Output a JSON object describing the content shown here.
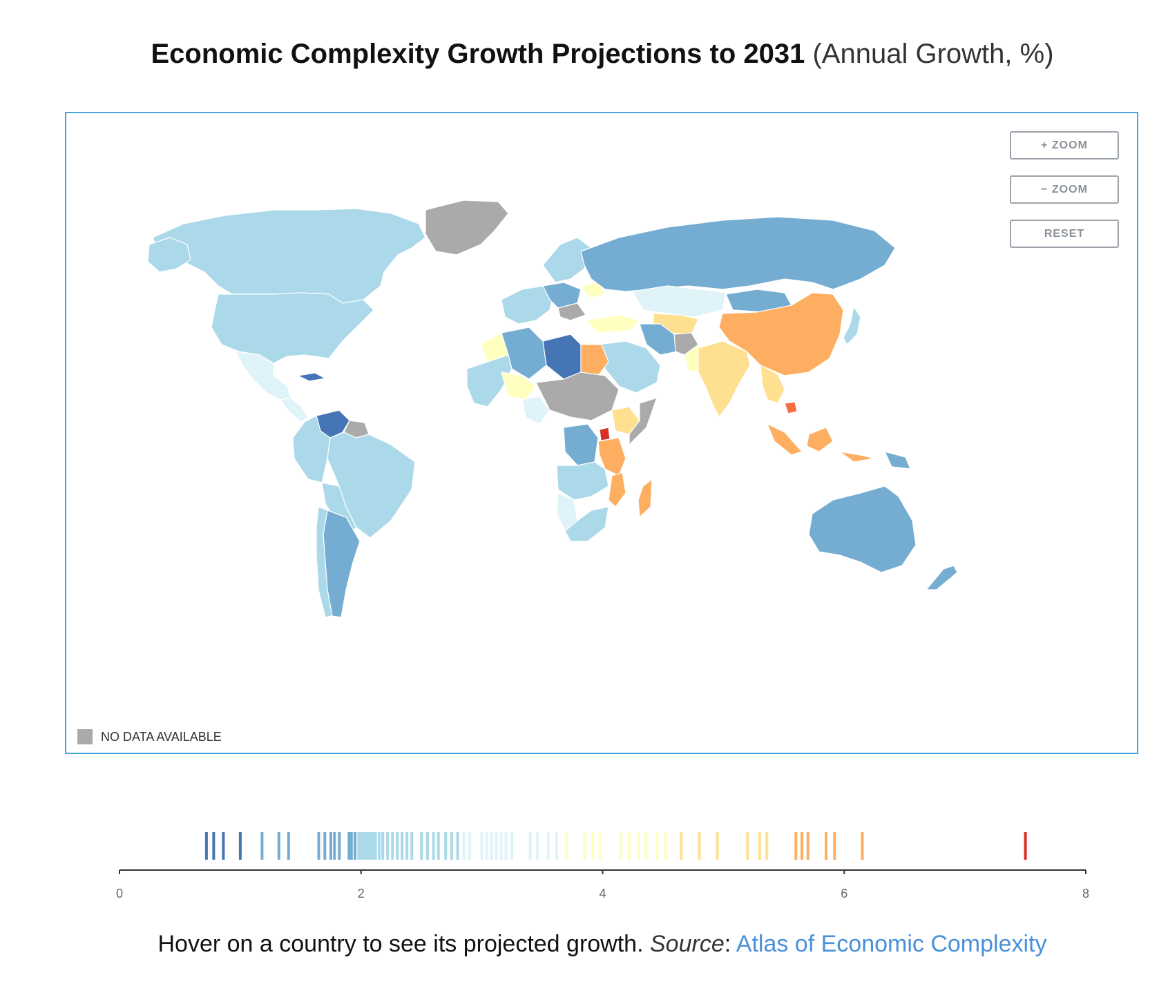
{
  "title": {
    "bold": "Economic Complexity Growth Projections to 2031",
    "light": "(Annual Growth, %)"
  },
  "controls": {
    "zoom_in": "+ ZOOM",
    "zoom_out": "− ZOOM",
    "reset": "RESET"
  },
  "nodata_label": "NO DATA AVAILABLE",
  "colors": {
    "no_data": "#aaaaaa",
    "frame": "#4aa3df",
    "scale": [
      "#4575b4",
      "#74add1",
      "#abd9e9",
      "#e0f3f8",
      "#ffffbf",
      "#fee090",
      "#fdae61",
      "#f46d43",
      "#d73027"
    ]
  },
  "legend": {
    "ticks": [
      "0",
      "2",
      "4",
      "6",
      "8"
    ],
    "domain": [
      0,
      8
    ],
    "values": [
      0.72,
      0.78,
      0.86,
      1.0,
      1.18,
      1.32,
      1.4,
      1.65,
      1.7,
      1.75,
      1.78,
      1.82,
      1.9,
      1.92,
      1.95,
      1.98,
      2.0,
      2.02,
      2.04,
      2.06,
      2.08,
      2.1,
      2.12,
      2.15,
      2.18,
      2.22,
      2.26,
      2.3,
      2.34,
      2.38,
      2.42,
      2.5,
      2.55,
      2.6,
      2.64,
      2.7,
      2.75,
      2.8,
      2.85,
      2.9,
      3.0,
      3.04,
      3.08,
      3.12,
      3.16,
      3.2,
      3.25,
      3.4,
      3.46,
      3.55,
      3.62,
      3.7,
      3.85,
      3.92,
      3.98,
      4.15,
      4.22,
      4.3,
      4.36,
      4.45,
      4.52,
      4.65,
      4.8,
      4.95,
      5.2,
      5.3,
      5.36,
      5.6,
      5.65,
      5.7,
      5.85,
      5.92,
      6.15,
      7.5
    ]
  },
  "footer": {
    "text": "Hover on a country to see its projected growth",
    "source_label": "Source",
    "source_link": "Atlas of Economic Complexity"
  }
}
